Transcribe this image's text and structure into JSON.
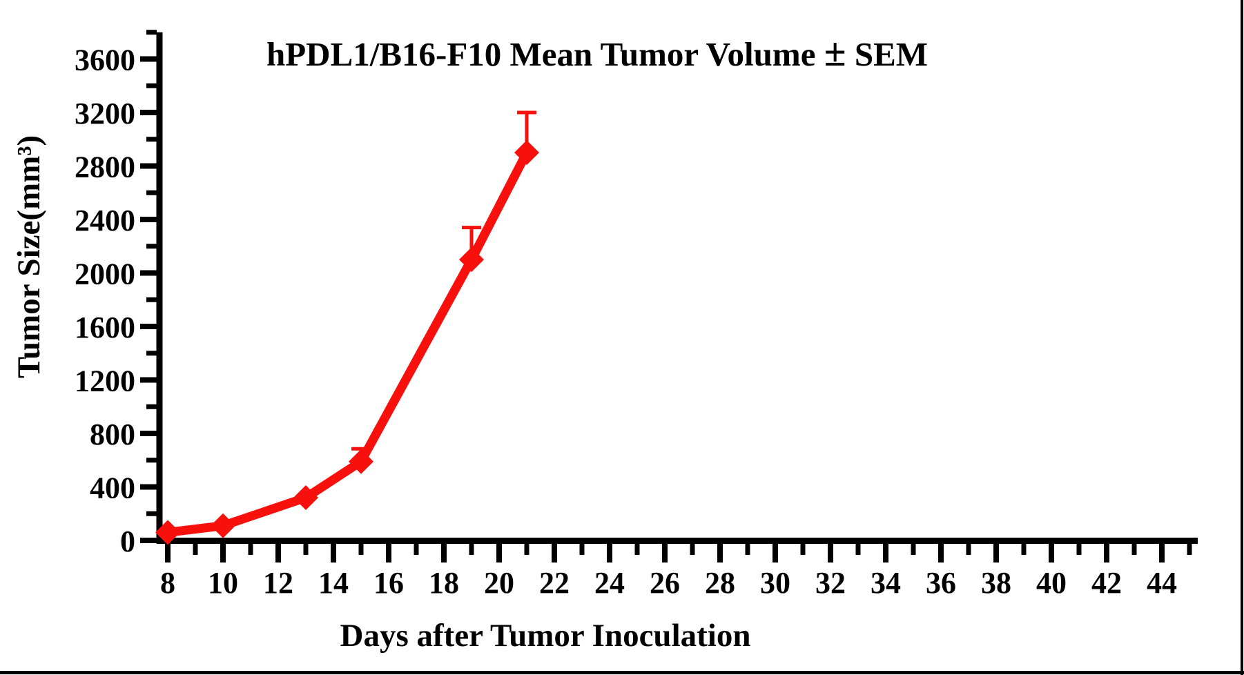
{
  "figure": {
    "background": "#ffffff",
    "edge_line_color": "#000000"
  },
  "chart_data": {
    "type": "line",
    "title": "hPDL1/B16-F10 Mean Tumor Volume ± SEM",
    "xlabel": "Days after Tumor Inoculation",
    "ylabel": "Tumor Size(mm³)",
    "grid": false,
    "legend": "none",
    "xlim": [
      7.6,
      45.3
    ],
    "ylim": [
      0,
      3800
    ],
    "x_major_tick_step": 2,
    "x_minor_tick_step": 1,
    "y_major_tick_step": 400,
    "y_minor_tick_step": 200,
    "x_tick_labels": [
      "8",
      "10",
      "12",
      "14",
      "16",
      "18",
      "20",
      "22",
      "24",
      "26",
      "28",
      "30",
      "32",
      "34",
      "36",
      "38",
      "40",
      "42",
      "44"
    ],
    "x_tick_values": [
      8,
      10,
      12,
      14,
      16,
      18,
      20,
      22,
      24,
      26,
      28,
      30,
      32,
      34,
      36,
      38,
      40,
      42,
      44
    ],
    "y_tick_labels": [
      "0",
      "400",
      "800",
      "1200",
      "1600",
      "2000",
      "2400",
      "2800",
      "3200",
      "3600"
    ],
    "y_tick_values": [
      0,
      400,
      800,
      1200,
      1600,
      2000,
      2400,
      2800,
      3200,
      3600
    ],
    "series": [
      {
        "name": "hPDL1/B16-F10 mean tumor volume",
        "color": "#f8100c",
        "marker": "diamond",
        "x": [
          8,
          10,
          13,
          15,
          19,
          21
        ],
        "y": [
          60,
          110,
          320,
          590,
          2100,
          2900
        ],
        "sem_upper": [
          0,
          0,
          0,
          95,
          240,
          300
        ]
      }
    ]
  }
}
